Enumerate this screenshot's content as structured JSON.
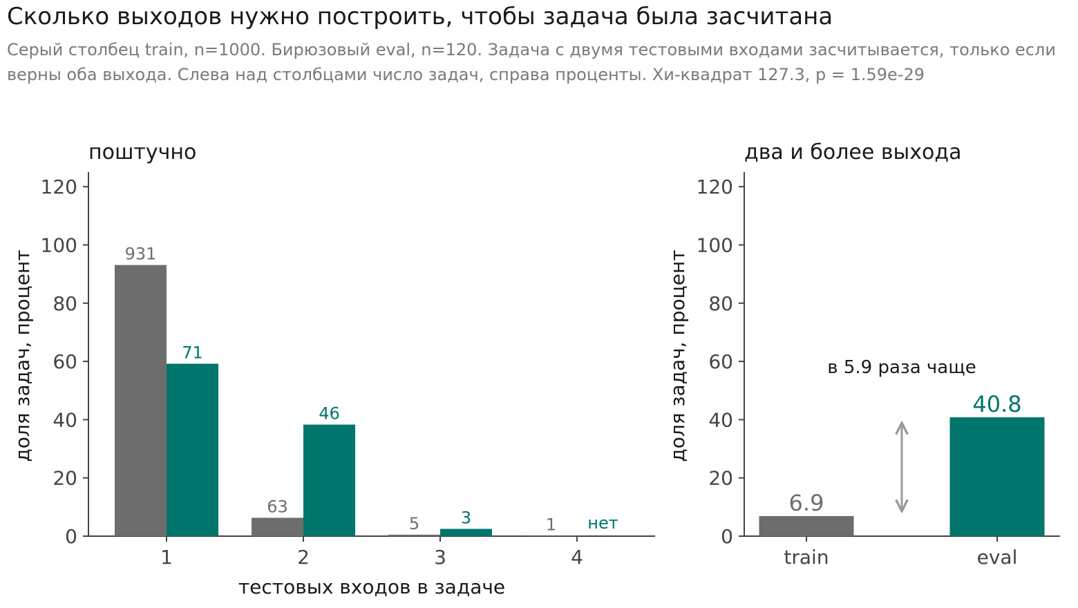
{
  "title": "Сколько выходов нужно построить, чтобы задача была засчитана",
  "subtitle": "Серый столбец train, n=1000. Бирюзовый eval, n=120. Задача с двумя тестовыми входами засчитывается, только если верны оба выхода. Слева над столбцами число задач, справа проценты. Хи-квадрат 127.3, p = 1.59e-29",
  "colors": {
    "train": "#6d6d6d",
    "eval": "#00766c",
    "axis": "#444444",
    "arrow": "#9a9a9a",
    "text": "#1a1a1a"
  },
  "chart_data": [
    {
      "type": "bar",
      "title": "поштучно",
      "xlabel": "тестовых входов в задаче",
      "ylabel": "доля задач, процент",
      "ylim": [
        0,
        125
      ],
      "yticks": [
        0,
        20,
        40,
        60,
        80,
        100,
        120
      ],
      "categories": [
        "1",
        "2",
        "3",
        "4"
      ],
      "series": [
        {
          "name": "train",
          "values": [
            93.1,
            6.3,
            0.5,
            0.1
          ],
          "labels": [
            "931",
            "63",
            "5",
            "1"
          ]
        },
        {
          "name": "eval",
          "values": [
            59.2,
            38.3,
            2.5,
            0
          ],
          "labels": [
            "71",
            "46",
            "3",
            "нет"
          ]
        }
      ]
    },
    {
      "type": "bar",
      "title": "два и более выхода",
      "xlabel": "",
      "ylabel": "доля задач, процент",
      "ylim": [
        0,
        125
      ],
      "yticks": [
        0,
        20,
        40,
        60,
        80,
        100,
        120
      ],
      "categories": [
        "train",
        "eval"
      ],
      "values": [
        6.9,
        40.8
      ],
      "labels": [
        "6.9",
        "40.8"
      ],
      "annotation": "в 5.9 раза чаще"
    }
  ]
}
